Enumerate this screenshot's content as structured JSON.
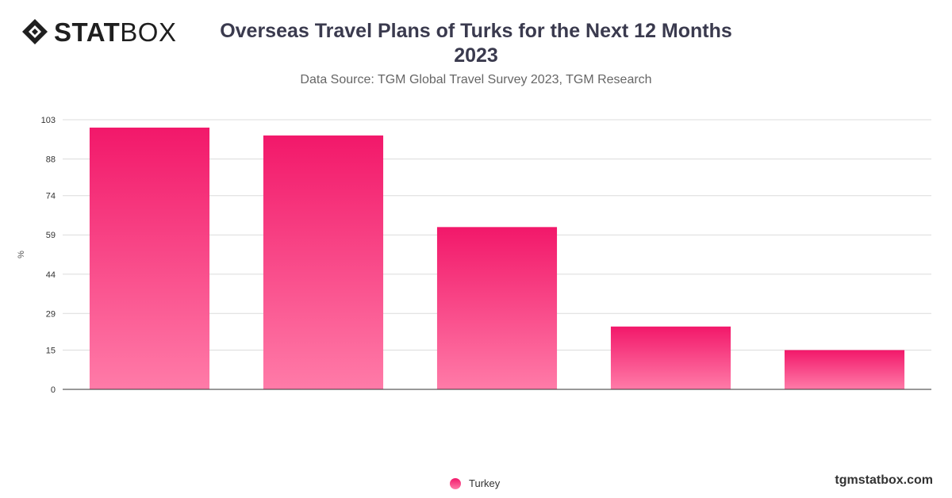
{
  "brand": {
    "logo_text_bold": "STAT",
    "logo_text_light": "BOX",
    "watermark": "tgmstatbox.com"
  },
  "header": {
    "title_line1": "Overseas Travel Plans of Turks for the Next 12 Months",
    "title_line2": "2023",
    "subtitle": "Data Source: TGM Global Travel Survey 2023, TGM Research"
  },
  "colors": {
    "bar_top": "#f2186a",
    "bar_bottom": "#ff7ba8",
    "grid": "#dcdcdc",
    "axis": "#333333"
  },
  "chart_data": {
    "type": "bar",
    "categories": [
      "",
      "",
      "",
      "",
      ""
    ],
    "series": [
      {
        "name": "Turkey",
        "values": [
          100,
          97,
          62,
          24,
          15
        ]
      }
    ],
    "ylabel": "%",
    "xlabel": "",
    "ylim": [
      0,
      103
    ],
    "yticks": [
      0,
      15,
      29,
      44,
      59,
      74,
      88,
      103
    ],
    "grid": true,
    "legend": "bottom-center"
  }
}
